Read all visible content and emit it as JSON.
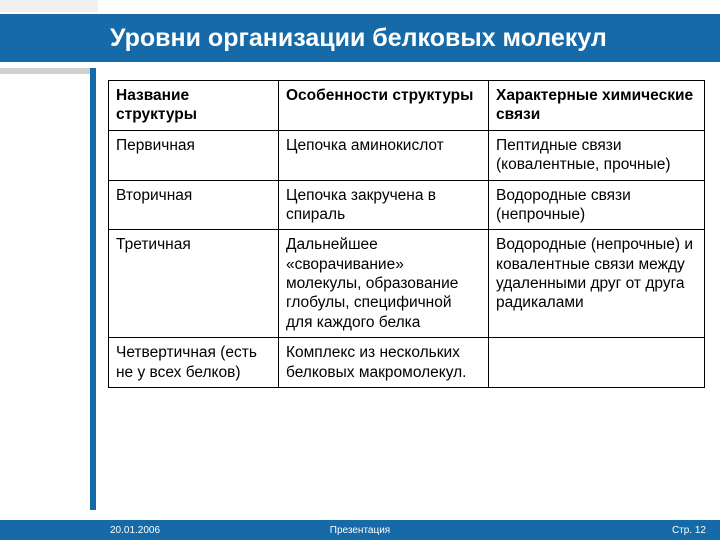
{
  "title": "Уровни организации белковых молекул",
  "table": {
    "columns": [
      "Название структуры",
      "Особенности структуры",
      "Характерные химические связи"
    ],
    "rows": [
      [
        "Первичная",
        "Цепочка аминокислот",
        "Пептидные связи (ковалентные, прочные)"
      ],
      [
        "Вторичная",
        "Цепочка закручена в спираль",
        "Водородные связи (непрочные)"
      ],
      [
        "Третичная",
        "Дальнейшее «сворачивание» молекулы, образование глобулы, специфичной для каждого белка",
        "Водородные (непрочные) и ковалентные связи между удаленными друг от друга радикалами"
      ],
      [
        "Четвертичная (есть не у всех белков)",
        "Комплекс из нескольких белковых макромолекул.",
        ""
      ]
    ]
  },
  "footer": {
    "date": "20.01.2006",
    "mid": "Презентация",
    "page": "Стр. 12"
  },
  "colors": {
    "brand": "#156aa7",
    "gray": "#d0d0d0"
  }
}
